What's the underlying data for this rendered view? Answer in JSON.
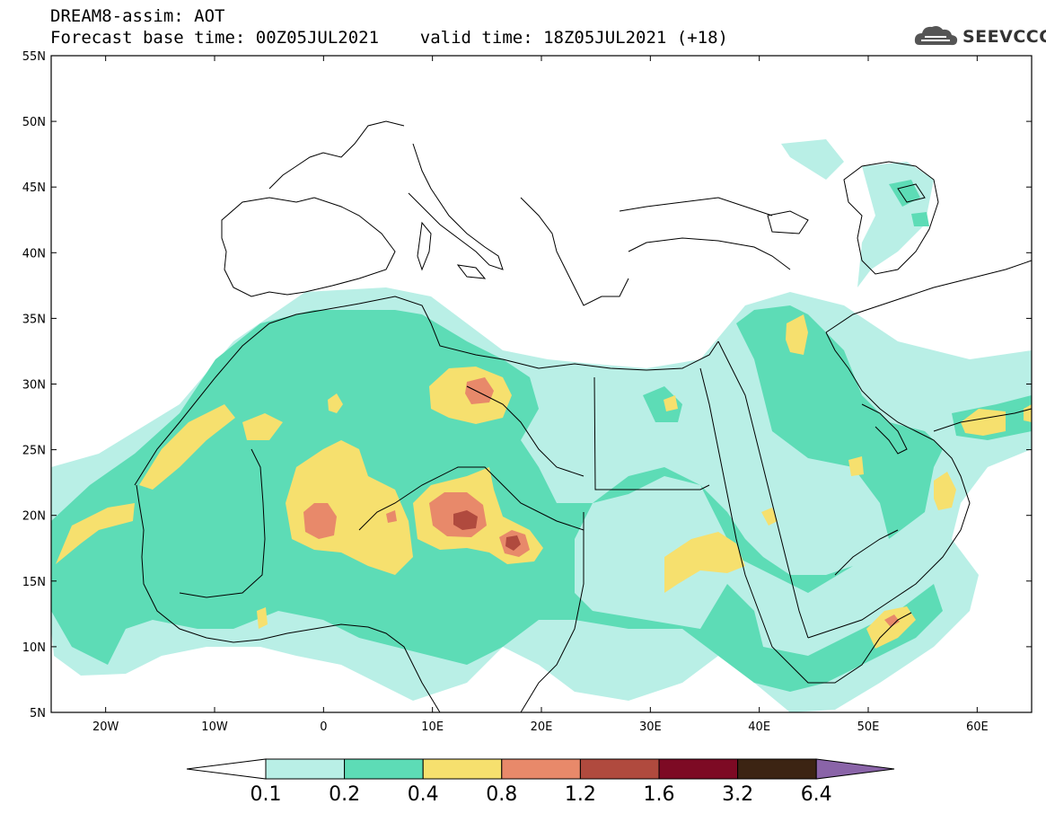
{
  "header": {
    "line1": "DREAM8-assim: AOT",
    "line2": "Forecast base time: 00Z05JUL2021    valid time: 18Z05JUL2021 (+18)"
  },
  "logo": {
    "text": "SEEVCCC",
    "icon": "cloud-icon",
    "color": "#4a4a4a"
  },
  "map": {
    "lon_range": [
      -25,
      65
    ],
    "lat_range": [
      5,
      55
    ],
    "lon_ticks": [
      "20W",
      "10W",
      "0",
      "10E",
      "20E",
      "30E",
      "40E",
      "50E",
      "60E"
    ],
    "lat_ticks": [
      "55N",
      "50N",
      "45N",
      "40N",
      "35N",
      "30N",
      "25N",
      "20N",
      "15N",
      "10N",
      "5N"
    ],
    "lon_tick_values": [
      -20,
      -10,
      0,
      10,
      20,
      30,
      40,
      50,
      60
    ],
    "lat_tick_values": [
      55,
      50,
      45,
      40,
      35,
      30,
      25,
      20,
      15,
      10,
      5
    ]
  },
  "colorbar": {
    "levels": [
      "0.1",
      "0.2",
      "0.4",
      "0.8",
      "1.2",
      "1.6",
      "3.2",
      "6.4"
    ],
    "colors": [
      "#b9efe6",
      "#5ddcb6",
      "#f6e06e",
      "#e8896a",
      "#b04a3e",
      "#7d0a24",
      "#3c2413",
      "#8a64a8"
    ],
    "under_color": "#ffffff"
  }
}
